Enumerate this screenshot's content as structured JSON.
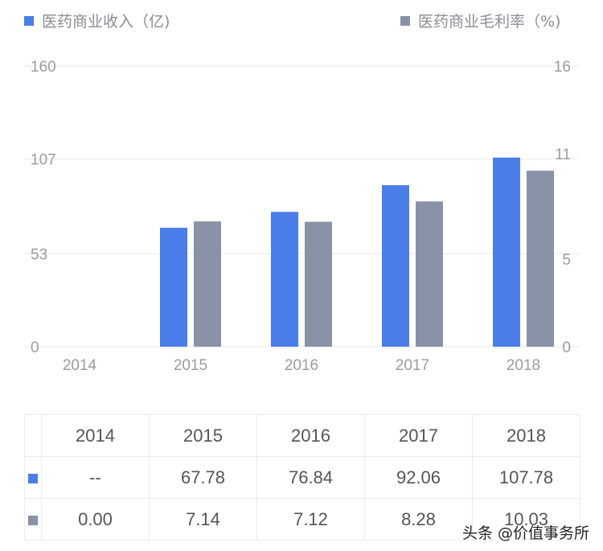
{
  "chart_data": {
    "type": "bar",
    "categories": [
      "2014",
      "2015",
      "2016",
      "2017",
      "2018"
    ],
    "series": [
      {
        "name": "医药商业收入（亿)",
        "axis": "left",
        "color": "#4a7de8",
        "values": [
          null,
          67.78,
          76.84,
          92.06,
          107.78
        ]
      },
      {
        "name": "医药商业毛利率（%)",
        "axis": "right",
        "color": "#8891a6",
        "values": [
          0.0,
          7.14,
          7.12,
          8.28,
          10.03
        ]
      }
    ],
    "left_ticks": [
      "0",
      "53",
      "107",
      "160"
    ],
    "right_ticks": [
      "0",
      "5",
      "11",
      "16"
    ],
    "ylim_left": [
      0,
      160
    ],
    "ylim_right": [
      0,
      16
    ],
    "grid": true,
    "legend": "top"
  },
  "legend": {
    "left": "医药商业收入（亿)",
    "right": "医药商业毛利率（%)"
  },
  "table": {
    "headers": [
      "2014",
      "2015",
      "2016",
      "2017",
      "2018"
    ],
    "rows": [
      [
        "--",
        "67.78",
        "76.84",
        "92.06",
        "107.78"
      ],
      [
        "0.00",
        "7.14",
        "7.12",
        "8.28",
        "10.03"
      ]
    ]
  },
  "watermark": "头条 @价值事务所"
}
